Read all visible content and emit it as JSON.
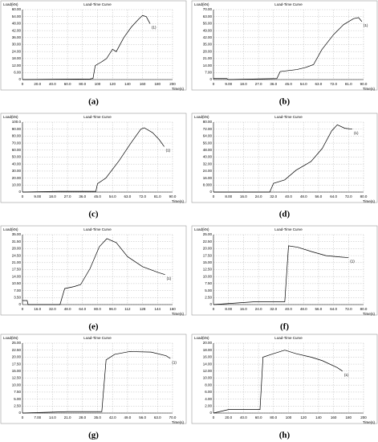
{
  "chart_data": [
    {
      "type": "line",
      "caption": "(a)",
      "title": "Load-Time Curve",
      "y_label": "Load(kN)",
      "x_label": "Time(s)",
      "grid": true,
      "x": [
        0,
        90,
        94,
        97,
        105,
        112,
        120,
        125,
        135,
        145,
        155,
        160,
        165,
        170
      ],
      "series": [
        {
          "name": "(1)",
          "color": "#000000",
          "values": [
            0,
            0.5,
            1,
            12,
            15,
            18,
            26,
            24,
            36,
            45,
            52,
            55,
            54,
            48
          ]
        }
      ],
      "xlim": [
        0,
        200
      ],
      "ylim": [
        0,
        60
      ],
      "xticks": [
        0,
        {
          "value": 20,
          "label": "20.0"
        },
        {
          "value": 40,
          "label": "40.0"
        },
        {
          "value": 60,
          "label": "60.0"
        },
        {
          "value": 80,
          "label": "80.0"
        },
        100,
        120,
        140,
        160,
        180,
        200
      ],
      "yticks": [
        0,
        {
          "value": 6,
          "label": "6.00"
        },
        {
          "value": 12,
          "label": "12.00"
        },
        {
          "value": 18,
          "label": "18.00"
        },
        {
          "value": 24,
          "label": "24.00"
        },
        {
          "value": 30,
          "label": "30.00"
        },
        {
          "value": 36,
          "label": "36.00"
        },
        {
          "value": 42,
          "label": "42.00"
        },
        {
          "value": 48,
          "label": "48.00"
        },
        {
          "value": 54,
          "label": "54.00"
        },
        {
          "value": 60,
          "label": "60.00"
        }
      ]
    },
    {
      "type": "line",
      "caption": "(b)",
      "title": "Load-Time Curve",
      "y_label": "Load(kN)",
      "x_label": "Time(s)",
      "grid": true,
      "x": [
        0,
        8,
        9,
        38,
        40,
        50,
        55,
        60,
        65,
        72,
        78,
        84,
        87,
        89
      ],
      "series": [
        {
          "name": "(1)",
          "color": "#000000",
          "values": [
            1,
            1,
            0,
            1,
            8,
            10,
            12,
            15,
            30,
            45,
            55,
            61,
            62,
            58
          ]
        }
      ],
      "xlim": [
        0,
        90
      ],
      "ylim": [
        0,
        70
      ],
      "xticks": [
        0,
        {
          "value": 9,
          "label": "9.00"
        },
        {
          "value": 18,
          "label": "18.0"
        },
        {
          "value": 27,
          "label": "27.0"
        },
        {
          "value": 36,
          "label": "36.0"
        },
        {
          "value": 45,
          "label": "45.0"
        },
        {
          "value": 54,
          "label": "54.0"
        },
        {
          "value": 63,
          "label": "63.0"
        },
        {
          "value": 72,
          "label": "72.0"
        },
        {
          "value": 81,
          "label": "81.0"
        },
        {
          "value": 90,
          "label": "90.0"
        }
      ],
      "yticks": [
        0,
        {
          "value": 7,
          "label": "7.00"
        },
        {
          "value": 14,
          "label": "14.00"
        },
        {
          "value": 21,
          "label": "21.00"
        },
        {
          "value": 28,
          "label": "28.00"
        },
        {
          "value": 35,
          "label": "35.00"
        },
        {
          "value": 42,
          "label": "42.00"
        },
        {
          "value": 49,
          "label": "49.00"
        },
        {
          "value": 56,
          "label": "56.00"
        },
        {
          "value": 63,
          "label": "63.00"
        },
        {
          "value": 70,
          "label": "70.00"
        }
      ]
    },
    {
      "type": "line",
      "caption": "(c)",
      "title": "Load-Time Curve",
      "y_label": "Load(kN)",
      "x_label": "Time(s)",
      "grid": true,
      "x": [
        0,
        22,
        44,
        45,
        50,
        58,
        65,
        71,
        73,
        78,
        82,
        85
      ],
      "series": [
        {
          "name": "(1)",
          "color": "#000000",
          "values": [
            0,
            1,
            1,
            12,
            20,
            45,
            70,
            90,
            92,
            85,
            75,
            65
          ]
        }
      ],
      "xlim": [
        0,
        90
      ],
      "ylim": [
        0,
        100
      ],
      "xticks": [
        0,
        {
          "value": 9,
          "label": "9.00"
        },
        {
          "value": 18,
          "label": "18.0"
        },
        {
          "value": 27,
          "label": "27.0"
        },
        {
          "value": 36,
          "label": "36.0"
        },
        {
          "value": 45,
          "label": "45.0"
        },
        {
          "value": 54,
          "label": "54.0"
        },
        {
          "value": 63,
          "label": "63.0"
        },
        {
          "value": 72,
          "label": "72.0"
        },
        {
          "value": 81,
          "label": "81.0"
        },
        {
          "value": 90,
          "label": "90.0"
        }
      ],
      "yticks": [
        0,
        {
          "value": 10,
          "label": "10.00"
        },
        {
          "value": 20,
          "label": "20.00"
        },
        {
          "value": 30,
          "label": "30.00"
        },
        {
          "value": 40,
          "label": "40.00"
        },
        {
          "value": 50,
          "label": "50.00"
        },
        {
          "value": 60,
          "label": "60.00"
        },
        {
          "value": 70,
          "label": "70.00"
        },
        {
          "value": 80,
          "label": "80.00"
        },
        {
          "value": 90,
          "label": "90.00"
        },
        {
          "value": 100,
          "label": "100.0"
        }
      ]
    },
    {
      "type": "line",
      "caption": "(d)",
      "title": "Load-Time Curve",
      "y_label": "Load(kN)",
      "x_label": "Time(s)",
      "grid": true,
      "x": [
        0,
        30,
        32,
        38,
        44,
        52,
        58,
        63,
        66,
        70,
        74
      ],
      "series": [
        {
          "name": "(1)",
          "color": "#000000",
          "values": [
            0,
            0,
            10,
            14,
            25,
            35,
            50,
            70,
            77,
            73,
            72
          ]
        }
      ],
      "xlim": [
        0,
        80
      ],
      "ylim": [
        0,
        80
      ],
      "xticks": [
        0,
        {
          "value": 8,
          "label": "8.00"
        },
        {
          "value": 16,
          "label": "16.0"
        },
        {
          "value": 24,
          "label": "24.0"
        },
        {
          "value": 32,
          "label": "32.0"
        },
        {
          "value": 40,
          "label": "40.0"
        },
        {
          "value": 48,
          "label": "48.0"
        },
        {
          "value": 56,
          "label": "56.0"
        },
        {
          "value": 64,
          "label": "64.0"
        },
        {
          "value": 72,
          "label": "72.0"
        },
        {
          "value": 80,
          "label": "80.0"
        }
      ],
      "yticks": [
        0,
        {
          "value": 8,
          "label": "8.000"
        },
        {
          "value": 16,
          "label": "16.00"
        },
        {
          "value": 24,
          "label": "24.00"
        },
        {
          "value": 32,
          "label": "32.00"
        },
        {
          "value": 40,
          "label": "40.00"
        },
        {
          "value": 48,
          "label": "48.00"
        },
        {
          "value": 56,
          "label": "56.00"
        },
        {
          "value": 64,
          "label": "64.00"
        },
        {
          "value": 72,
          "label": "72.00"
        },
        {
          "value": 80,
          "label": "80.00"
        }
      ]
    },
    {
      "type": "line",
      "caption": "(e)",
      "title": "Load-Time Curve",
      "y_label": "Load(kN)",
      "x_label": "Time(s)",
      "grid": true,
      "x": [
        0,
        5,
        6,
        40,
        45,
        55,
        62,
        72,
        82,
        90,
        100,
        112,
        128,
        145,
        152
      ],
      "series": [
        {
          "name": "(1)",
          "color": "#000000",
          "values": [
            2,
            2,
            0,
            0,
            8,
            9,
            10,
            18,
            29,
            33,
            31,
            24,
            19,
            16,
            15
          ]
        }
      ],
      "xlim": [
        0,
        160
      ],
      "ylim": [
        0,
        35
      ],
      "xticks": [
        0,
        {
          "value": 16,
          "label": "16.0"
        },
        {
          "value": 32,
          "label": "32.0"
        },
        {
          "value": 48,
          "label": "48.0"
        },
        {
          "value": 64,
          "label": "64.0"
        },
        {
          "value": 80,
          "label": "80.0"
        },
        {
          "value": 96,
          "label": "96.0"
        },
        112,
        128,
        144,
        160
      ],
      "yticks": [
        0,
        {
          "value": 3.5,
          "label": "3.50"
        },
        {
          "value": 7,
          "label": "7.00"
        },
        {
          "value": 10.5,
          "label": "10.50"
        },
        {
          "value": 14,
          "label": "14.00"
        },
        {
          "value": 17.5,
          "label": "17.50"
        },
        {
          "value": 21,
          "label": "21.00"
        },
        {
          "value": 24.5,
          "label": "24.50"
        },
        {
          "value": 28,
          "label": "28.00"
        },
        {
          "value": 31.5,
          "label": "31.50"
        },
        {
          "value": 35,
          "label": "35.00"
        }
      ]
    },
    {
      "type": "line",
      "caption": "(f)",
      "title": "Load-Time Curve",
      "y_label": "Load(kN)",
      "x_label": "Time(s)",
      "grid": true,
      "x": [
        0,
        22,
        38,
        40,
        45,
        52,
        60,
        68,
        72
      ],
      "series": [
        {
          "name": "(1)",
          "color": "#000000",
          "values": [
            0,
            1,
            1,
            21,
            20.5,
            19,
            17.5,
            17,
            16.8
          ]
        }
      ],
      "xlim": [
        0,
        80
      ],
      "ylim": [
        0,
        25
      ],
      "xticks": [
        0,
        {
          "value": 8,
          "label": "8.00"
        },
        {
          "value": 16,
          "label": "16.0"
        },
        {
          "value": 24,
          "label": "24.0"
        },
        {
          "value": 32,
          "label": "32.0"
        },
        {
          "value": 40,
          "label": "40.0"
        },
        {
          "value": 48,
          "label": "48.0"
        },
        {
          "value": 56,
          "label": "56.0"
        },
        {
          "value": 64,
          "label": "64.0"
        },
        {
          "value": 72,
          "label": "72.0"
        },
        {
          "value": 80,
          "label": "80.0"
        }
      ],
      "yticks": [
        0,
        {
          "value": 2.5,
          "label": "2.50"
        },
        {
          "value": 5,
          "label": "5.00"
        },
        {
          "value": 7.5,
          "label": "7.50"
        },
        {
          "value": 10,
          "label": "10.00"
        },
        {
          "value": 12.5,
          "label": "12.50"
        },
        {
          "value": 15,
          "label": "15.00"
        },
        {
          "value": 17.5,
          "label": "17.50"
        },
        {
          "value": 20,
          "label": "20.00"
        },
        {
          "value": 22.5,
          "label": "22.50"
        },
        {
          "value": 25,
          "label": "25.00"
        }
      ]
    },
    {
      "type": "line",
      "caption": "(g)",
      "title": "Load-Time Curve",
      "y_label": "Load(kN)",
      "x_label": "Time(s)",
      "grid": true,
      "x": [
        0,
        21,
        37,
        39,
        43,
        50,
        60,
        67,
        69
      ],
      "series": [
        {
          "name": "(1)",
          "color": "#000000",
          "values": [
            0,
            0.5,
            0.5,
            19,
            21,
            22,
            21.8,
            20.5,
            19.5
          ]
        }
      ],
      "xlim": [
        0,
        70
      ],
      "ylim": [
        0,
        25
      ],
      "xticks": [
        0,
        {
          "value": 7,
          "label": "7.00"
        },
        {
          "value": 14,
          "label": "14.0"
        },
        {
          "value": 21,
          "label": "21.0"
        },
        {
          "value": 28,
          "label": "28.0"
        },
        {
          "value": 35,
          "label": "35.0"
        },
        {
          "value": 42,
          "label": "42.0"
        },
        {
          "value": 49,
          "label": "49.0"
        },
        {
          "value": 56,
          "label": "56.0"
        },
        {
          "value": 63,
          "label": "63.0"
        },
        {
          "value": 70,
          "label": "70.0"
        }
      ],
      "yticks": [
        0,
        {
          "value": 2.5,
          "label": "2.50"
        },
        {
          "value": 5,
          "label": "5.00"
        },
        {
          "value": 7.5,
          "label": "7.50"
        },
        {
          "value": 10,
          "label": "10.00"
        },
        {
          "value": 12.5,
          "label": "12.50"
        },
        {
          "value": 15,
          "label": "15.00"
        },
        {
          "value": 17.5,
          "label": "17.50"
        },
        {
          "value": 20,
          "label": "20.00"
        },
        {
          "value": 22.5,
          "label": "22.50"
        },
        {
          "value": 25,
          "label": "25.00"
        }
      ]
    },
    {
      "type": "line",
      "caption": "(h)",
      "title": "Load-Time Curve",
      "y_label": "Load(kN)",
      "x_label": "Time(s)",
      "grid": true,
      "x": [
        0,
        20,
        62,
        66,
        80,
        95,
        110,
        130,
        145,
        165,
        172
      ],
      "series": [
        {
          "name": "(1)",
          "color": "#000000",
          "values": [
            0,
            1,
            1,
            16,
            17,
            18,
            17,
            16,
            15,
            13,
            12
          ]
        }
      ],
      "xlim": [
        0,
        200
      ],
      "ylim": [
        0,
        20
      ],
      "xticks": [
        0,
        {
          "value": 20,
          "label": "20.0"
        },
        {
          "value": 40,
          "label": "40.0"
        },
        {
          "value": 60,
          "label": "60.0"
        },
        {
          "value": 80,
          "label": "80.0"
        },
        100,
        120,
        140,
        160,
        180,
        200
      ],
      "yticks": [
        0,
        {
          "value": 2,
          "label": "2.00"
        },
        {
          "value": 4,
          "label": "4.00"
        },
        {
          "value": 6,
          "label": "6.00"
        },
        {
          "value": 8,
          "label": "8.00"
        },
        {
          "value": 10,
          "label": "10.00"
        },
        {
          "value": 12,
          "label": "12.00"
        },
        {
          "value": 14,
          "label": "14.00"
        },
        {
          "value": 16,
          "label": "16.00"
        },
        {
          "value": 18,
          "label": "18.00"
        },
        {
          "value": 20,
          "label": "20.00"
        }
      ]
    }
  ]
}
